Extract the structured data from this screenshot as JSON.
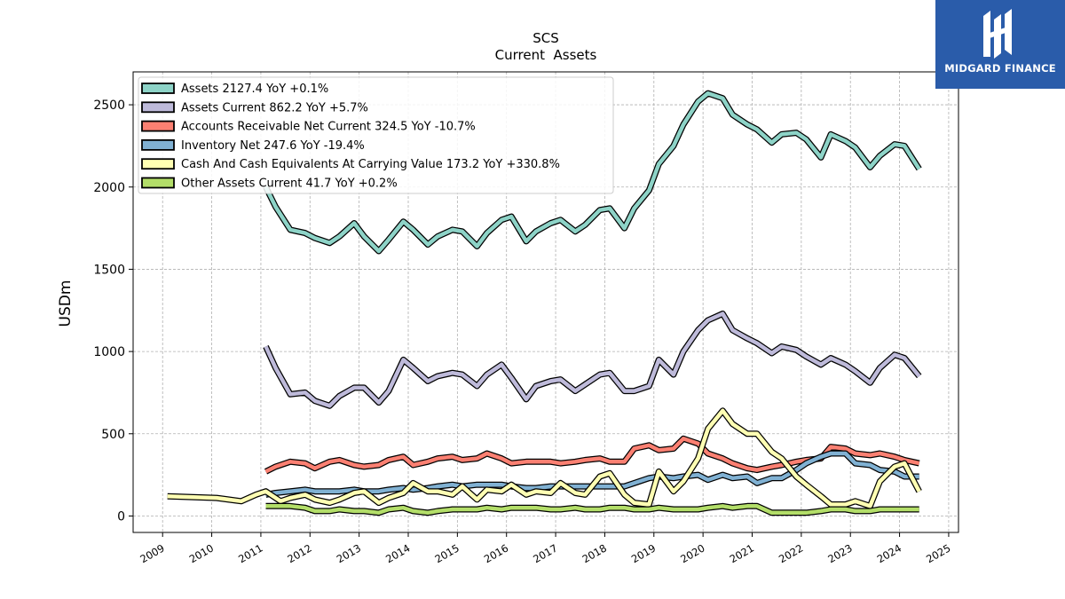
{
  "chart_data": {
    "type": "line",
    "title": "SCS",
    "subtitle": "Current  Assets",
    "xlabel": "",
    "ylabel": "USDm",
    "xlim": [
      2008.4,
      2025.2
    ],
    "ylim": [
      -100,
      2700
    ],
    "x_ticks": [
      "2009",
      "2010",
      "2011",
      "2012",
      "2013",
      "2014",
      "2015",
      "2016",
      "2017",
      "2018",
      "2019",
      "2020",
      "2021",
      "2022",
      "2023",
      "2024",
      "2025"
    ],
    "y_ticks": [
      "0",
      "500",
      "1000",
      "1500",
      "2000",
      "2500"
    ],
    "grid": true,
    "legend_position": "top-left",
    "series": [
      {
        "name": "Assets  2127.4 YoY +0.1%",
        "color": "#8dd3c7",
        "x": [
          2011.1,
          2011.3,
          2011.6,
          2011.9,
          2012.1,
          2012.4,
          2012.6,
          2012.9,
          2013.1,
          2013.4,
          2013.6,
          2013.9,
          2014.1,
          2014.4,
          2014.6,
          2014.9,
          2015.1,
          2015.4,
          2015.6,
          2015.9,
          2016.1,
          2016.4,
          2016.6,
          2016.9,
          2017.1,
          2017.4,
          2017.6,
          2017.9,
          2018.1,
          2018.4,
          2018.6,
          2018.9,
          2019.1,
          2019.4,
          2019.6,
          2019.9,
          2020.1,
          2020.4,
          2020.6,
          2020.9,
          2021.1,
          2021.4,
          2021.6,
          2021.9,
          2022.1,
          2022.4,
          2022.6,
          2022.9,
          2023.1,
          2023.4,
          2023.6,
          2023.9,
          2024.1,
          2024.4
        ],
        "y": [
          2000,
          1880,
          1740,
          1720,
          1690,
          1660,
          1700,
          1780,
          1700,
          1610,
          1680,
          1790,
          1740,
          1650,
          1700,
          1740,
          1730,
          1640,
          1720,
          1800,
          1820,
          1670,
          1730,
          1780,
          1800,
          1730,
          1770,
          1860,
          1870,
          1750,
          1870,
          1980,
          2140,
          2250,
          2380,
          2520,
          2570,
          2540,
          2440,
          2380,
          2350,
          2270,
          2320,
          2330,
          2290,
          2180,
          2320,
          2280,
          2240,
          2120,
          2190,
          2260,
          2250,
          2110
        ]
      },
      {
        "name": "Assets Current  862.2 YoY +5.7%",
        "color": "#bebada",
        "x": [
          2011.1,
          2011.3,
          2011.6,
          2011.9,
          2012.1,
          2012.4,
          2012.6,
          2012.9,
          2013.1,
          2013.4,
          2013.6,
          2013.9,
          2014.1,
          2014.4,
          2014.6,
          2014.9,
          2015.1,
          2015.4,
          2015.6,
          2015.9,
          2016.1,
          2016.4,
          2016.6,
          2016.9,
          2017.1,
          2017.4,
          2017.6,
          2017.9,
          2018.1,
          2018.4,
          2018.6,
          2018.9,
          2019.1,
          2019.4,
          2019.6,
          2019.9,
          2020.1,
          2020.4,
          2020.6,
          2020.9,
          2021.1,
          2021.4,
          2021.6,
          2021.9,
          2022.1,
          2022.4,
          2022.6,
          2022.9,
          2023.1,
          2023.4,
          2023.6,
          2023.9,
          2024.1,
          2024.4
        ],
        "y": [
          1030,
          900,
          740,
          750,
          700,
          670,
          730,
          780,
          780,
          690,
          760,
          950,
          900,
          820,
          850,
          870,
          860,
          790,
          860,
          920,
          840,
          710,
          790,
          820,
          830,
          760,
          800,
          860,
          870,
          760,
          760,
          790,
          950,
          860,
          1000,
          1130,
          1190,
          1230,
          1130,
          1080,
          1050,
          990,
          1030,
          1010,
          970,
          920,
          960,
          920,
          880,
          810,
          900,
          980,
          960,
          850
        ]
      },
      {
        "name": "Accounts Receivable Net Current  324.5 YoY -10.7%",
        "color": "#fb8072",
        "x": [
          2011.1,
          2011.3,
          2011.6,
          2011.9,
          2012.1,
          2012.4,
          2012.6,
          2012.9,
          2013.1,
          2013.4,
          2013.6,
          2013.9,
          2014.1,
          2014.4,
          2014.6,
          2014.9,
          2015.1,
          2015.4,
          2015.6,
          2015.9,
          2016.1,
          2016.4,
          2016.6,
          2016.9,
          2017.1,
          2017.4,
          2017.6,
          2017.9,
          2018.1,
          2018.4,
          2018.6,
          2018.9,
          2019.1,
          2019.4,
          2019.6,
          2019.9,
          2020.1,
          2020.4,
          2020.6,
          2020.9,
          2021.1,
          2021.4,
          2021.6,
          2021.9,
          2022.1,
          2022.4,
          2022.6,
          2022.9,
          2023.1,
          2023.4,
          2023.6,
          2023.9,
          2024.1,
          2024.4
        ],
        "y": [
          270,
          300,
          330,
          320,
          290,
          330,
          340,
          310,
          300,
          310,
          340,
          360,
          310,
          330,
          350,
          360,
          340,
          350,
          380,
          350,
          320,
          330,
          330,
          330,
          320,
          330,
          340,
          350,
          330,
          330,
          410,
          430,
          400,
          410,
          470,
          440,
          380,
          350,
          320,
          290,
          280,
          300,
          310,
          330,
          340,
          350,
          420,
          410,
          380,
          370,
          380,
          360,
          340,
          320
        ]
      },
      {
        "name": "Inventory Net  247.6 YoY -19.4%",
        "color": "#80b1d3",
        "x": [
          2011.1,
          2011.3,
          2011.6,
          2011.9,
          2012.1,
          2012.4,
          2012.6,
          2012.9,
          2013.1,
          2013.4,
          2013.6,
          2013.9,
          2014.1,
          2014.4,
          2014.6,
          2014.9,
          2015.1,
          2015.4,
          2015.6,
          2015.9,
          2016.1,
          2016.4,
          2016.6,
          2016.9,
          2017.1,
          2017.4,
          2017.6,
          2017.9,
          2018.1,
          2018.4,
          2018.6,
          2018.9,
          2019.1,
          2019.4,
          2019.6,
          2019.9,
          2020.1,
          2020.4,
          2020.6,
          2020.9,
          2021.1,
          2021.4,
          2021.6,
          2021.9,
          2022.1,
          2022.4,
          2022.6,
          2022.9,
          2023.1,
          2023.4,
          2023.6,
          2023.9,
          2024.1,
          2024.4
        ],
        "y": [
          130,
          140,
          150,
          160,
          150,
          150,
          150,
          160,
          150,
          150,
          160,
          170,
          160,
          170,
          180,
          190,
          180,
          190,
          190,
          190,
          180,
          170,
          170,
          180,
          180,
          180,
          180,
          180,
          180,
          180,
          200,
          230,
          240,
          230,
          240,
          250,
          220,
          250,
          230,
          240,
          200,
          230,
          230,
          280,
          320,
          360,
          380,
          380,
          320,
          310,
          280,
          270,
          240,
          240
        ]
      },
      {
        "name": "Cash And Cash Equivalents At Carrying Value  173.2 YoY +330.8%",
        "color": "#ffffb3",
        "x": [
          2009.1,
          2010.1,
          2010.6,
          2010.9,
          2011.1,
          2011.4,
          2011.6,
          2011.9,
          2012.1,
          2012.4,
          2012.6,
          2012.9,
          2013.1,
          2013.4,
          2013.6,
          2013.9,
          2014.1,
          2014.4,
          2014.6,
          2014.9,
          2015.1,
          2015.4,
          2015.6,
          2015.9,
          2016.1,
          2016.4,
          2016.6,
          2016.9,
          2017.1,
          2017.4,
          2017.6,
          2017.9,
          2018.1,
          2018.4,
          2018.6,
          2018.9,
          2019.1,
          2019.4,
          2019.6,
          2019.9,
          2020.1,
          2020.4,
          2020.6,
          2020.9,
          2021.1,
          2021.4,
          2021.6,
          2021.9,
          2022.1,
          2022.4,
          2022.6,
          2022.9,
          2023.1,
          2023.4,
          2023.6,
          2023.9,
          2024.1,
          2024.4
        ],
        "y": [
          120,
          110,
          90,
          130,
          150,
          90,
          110,
          130,
          100,
          80,
          100,
          140,
          150,
          80,
          110,
          140,
          200,
          150,
          150,
          130,
          180,
          100,
          160,
          150,
          190,
          130,
          150,
          140,
          200,
          140,
          130,
          240,
          260,
          130,
          80,
          70,
          270,
          150,
          210,
          350,
          530,
          640,
          560,
          500,
          500,
          390,
          350,
          240,
          190,
          120,
          70,
          70,
          90,
          60,
          210,
          300,
          320,
          150
        ]
      },
      {
        "name": "Other Assets Current  41.7 YoY +0.2%",
        "color": "#b3de69",
        "x": [
          2011.1,
          2011.3,
          2011.6,
          2011.9,
          2012.1,
          2012.4,
          2012.6,
          2012.9,
          2013.1,
          2013.4,
          2013.6,
          2013.9,
          2014.1,
          2014.4,
          2014.6,
          2014.9,
          2015.1,
          2015.4,
          2015.6,
          2015.9,
          2016.1,
          2016.4,
          2016.6,
          2016.9,
          2017.1,
          2017.4,
          2017.6,
          2017.9,
          2018.1,
          2018.4,
          2018.6,
          2018.9,
          2019.1,
          2019.4,
          2019.6,
          2019.9,
          2020.1,
          2020.4,
          2020.6,
          2020.9,
          2021.1,
          2021.4,
          2021.6,
          2021.9,
          2022.1,
          2022.4,
          2022.6,
          2022.9,
          2023.1,
          2023.4,
          2023.6,
          2023.9,
          2024.1,
          2024.4
        ],
        "y": [
          60,
          60,
          60,
          50,
          30,
          30,
          40,
          30,
          30,
          20,
          40,
          50,
          30,
          20,
          30,
          40,
          40,
          40,
          50,
          40,
          50,
          50,
          50,
          40,
          40,
          50,
          40,
          40,
          50,
          50,
          40,
          40,
          50,
          40,
          40,
          40,
          50,
          60,
          50,
          60,
          60,
          20,
          20,
          20,
          20,
          30,
          40,
          40,
          30,
          30,
          40,
          40,
          40,
          40
        ]
      }
    ]
  },
  "logo": {
    "text": "MIDGARD FINANCE",
    "icon": "midgard-logo-icon"
  }
}
